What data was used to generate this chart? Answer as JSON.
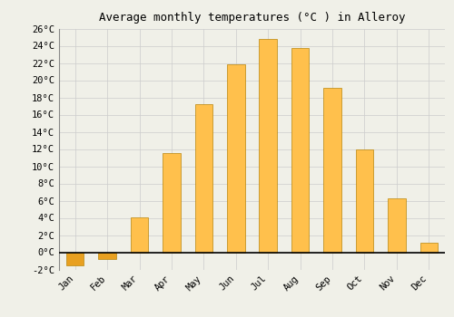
{
  "title": "Average monthly temperatures (°C ) in Alleroy",
  "months": [
    "Jan",
    "Feb",
    "Mar",
    "Apr",
    "May",
    "Jun",
    "Jul",
    "Aug",
    "Sep",
    "Oct",
    "Nov",
    "Dec"
  ],
  "values": [
    -1.5,
    -0.8,
    4.1,
    11.5,
    17.2,
    21.8,
    24.8,
    23.7,
    19.1,
    12.0,
    6.3,
    1.1
  ],
  "bar_color_pos": "#FFC04C",
  "bar_color_neg": "#E8A020",
  "bar_edge_color": "#B8860B",
  "background_color": "#F0F0E8",
  "grid_color": "#CCCCCC",
  "ylim": [
    -2,
    26
  ],
  "yticks": [
    -2,
    0,
    2,
    4,
    6,
    8,
    10,
    12,
    14,
    16,
    18,
    20,
    22,
    24,
    26
  ],
  "title_fontsize": 9,
  "tick_fontsize": 7.5,
  "font_family": "monospace",
  "bar_width": 0.55
}
